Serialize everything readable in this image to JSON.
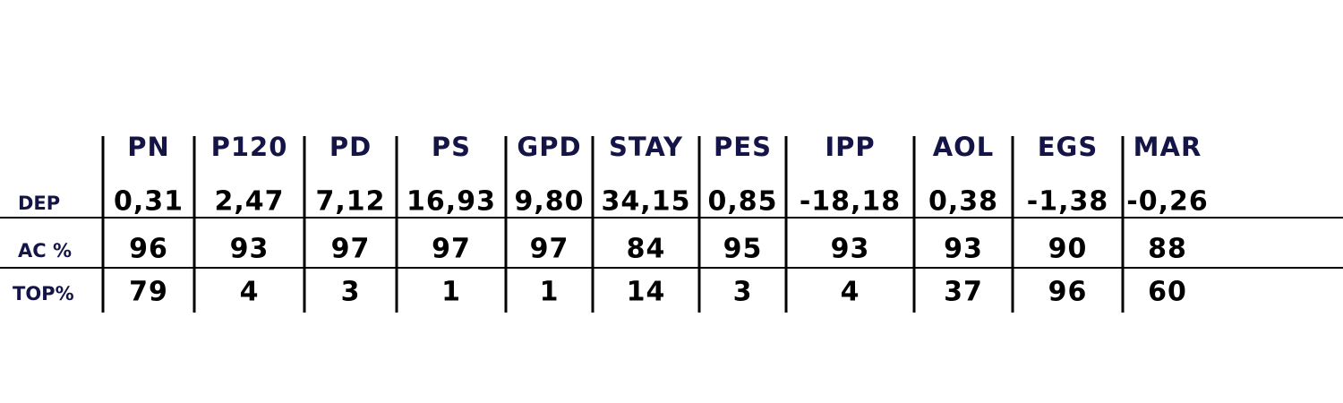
{
  "table": {
    "columns": [
      "PN",
      "P120",
      "PD",
      "PS",
      "GPD",
      "STAY",
      "PES",
      "IPP",
      "AOL",
      "EGS",
      "MAR"
    ],
    "rows": [
      {
        "label": "DEP",
        "cells": [
          "0,31",
          "2,47",
          "7,12",
          "16,93",
          "9,80",
          "34,15",
          "0,85",
          "-18,18",
          "0,38",
          "-1,38",
          "-0,26"
        ]
      },
      {
        "label": "AC %",
        "cells": [
          96,
          93,
          97,
          97,
          97,
          84,
          95,
          93,
          93,
          90,
          88
        ]
      },
      {
        "label": "TOP%",
        "cells": [
          79,
          4,
          3,
          1,
          1,
          14,
          3,
          4,
          37,
          96,
          60
        ]
      }
    ]
  }
}
